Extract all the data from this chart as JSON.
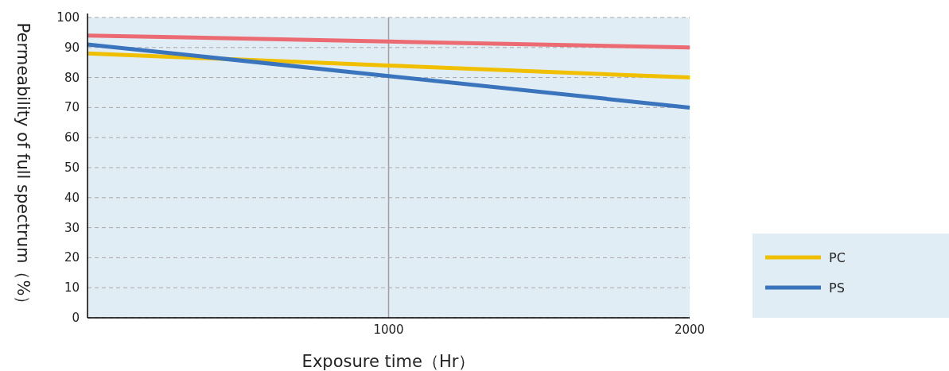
{
  "chart_data": {
    "type": "line",
    "xlabel": "Exposure time（Hr）",
    "ylabel": "Permeability of full spectrum（%）",
    "x": [
      0,
      1000,
      2000
    ],
    "series": [
      {
        "color": "#ec6b73",
        "values": [
          94,
          92,
          90
        ]
      },
      {
        "name": "PC",
        "color": "#f0c000",
        "values": [
          88,
          84,
          80
        ]
      },
      {
        "name": "PS",
        "color": "#3a74bd",
        "values": [
          91,
          80.5,
          70
        ]
      }
    ],
    "xlim": [
      0,
      2000
    ],
    "xticks": [
      1000,
      2000
    ],
    "ylim": [
      0,
      100
    ],
    "yticks": [
      0,
      10,
      20,
      30,
      40,
      50,
      60,
      70,
      80,
      90,
      100
    ],
    "grid": "y",
    "ref_lines": [
      {
        "axis": "x",
        "value": 1000,
        "color": "#a0a0a0"
      }
    ],
    "legend": "bottom right",
    "marker": "none",
    "line_style": "solid"
  }
}
